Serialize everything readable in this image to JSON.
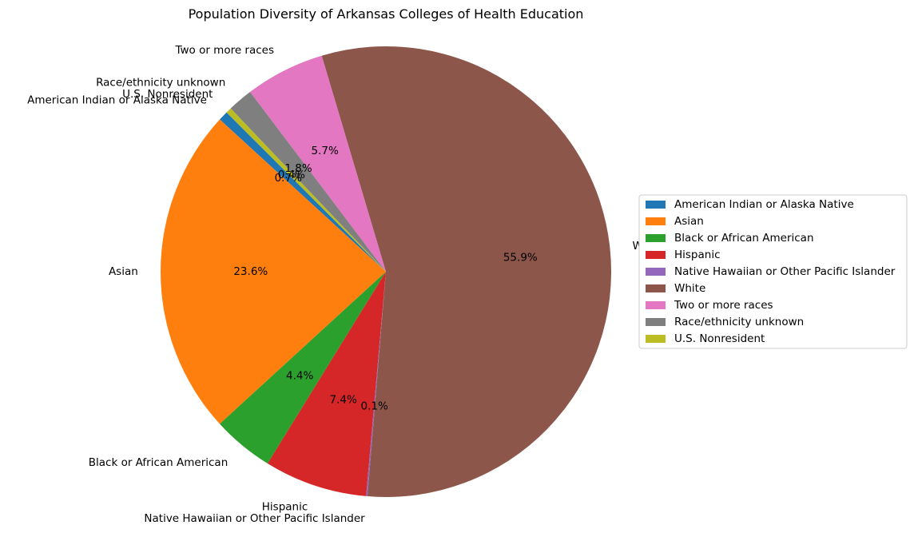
{
  "chart_data": {
    "type": "pie",
    "title": "Population Diversity of Arkansas Colleges of Health Education",
    "start_angle_deg": 135,
    "direction": "counterclockwise",
    "legend_position": "right",
    "slices": [
      {
        "label": "American Indian or Alaska Native",
        "value": 0.7,
        "pct_label": "0.7%",
        "color": "#1f77b4"
      },
      {
        "label": "Asian",
        "value": 23.6,
        "pct_label": "23.6%",
        "color": "#ff7f0e"
      },
      {
        "label": "Black or African American",
        "value": 4.4,
        "pct_label": "4.4%",
        "color": "#2ca02c"
      },
      {
        "label": "Hispanic",
        "value": 7.4,
        "pct_label": "7.4%",
        "color": "#d62728"
      },
      {
        "label": "Native Hawaiian or Other Pacific Islander",
        "value": 0.1,
        "pct_label": "0.1%",
        "color": "#9467bd"
      },
      {
        "label": "White",
        "value": 55.9,
        "pct_label": "55.9%",
        "color": "#8c564b"
      },
      {
        "label": "Two or more races",
        "value": 5.7,
        "pct_label": "5.7%",
        "color": "#e377c2"
      },
      {
        "label": "Race/ethnicity unknown",
        "value": 1.8,
        "pct_label": "1.8%",
        "color": "#7f7f7f"
      },
      {
        "label": "U.S. Nonresident",
        "value": 0.4,
        "pct_label": "0.4%",
        "color": "#bcbd22"
      }
    ]
  }
}
